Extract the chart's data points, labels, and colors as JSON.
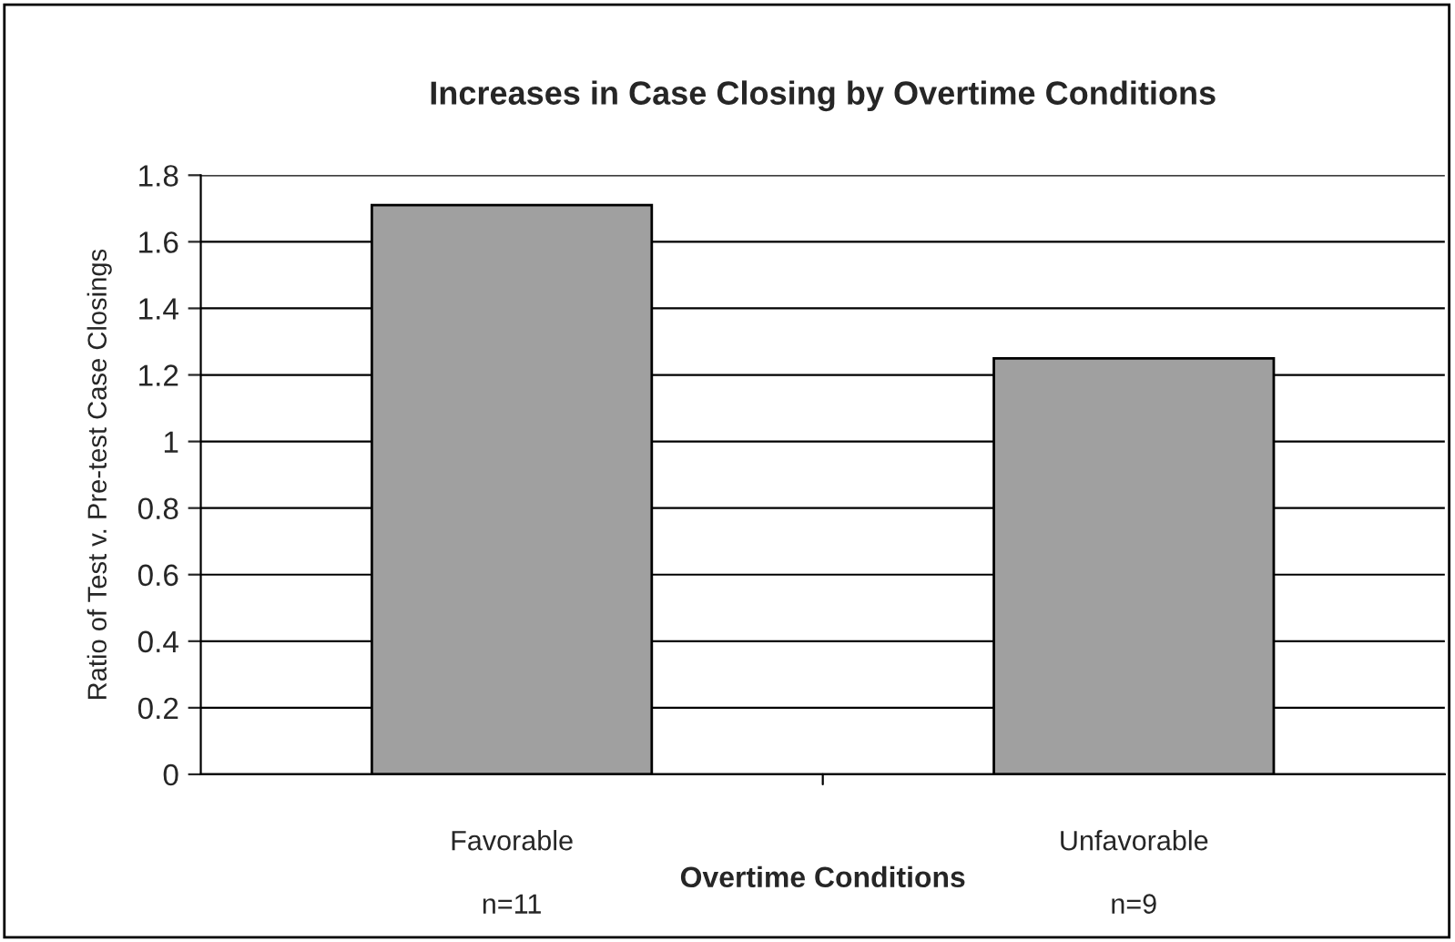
{
  "chart_data": {
    "type": "bar",
    "title": "Increases in Case Closing by Overtime Conditions",
    "xlabel": "Overtime Conditions",
    "ylabel": "Ratio of Test v. Pre-test Case Closings",
    "categories": [
      "Favorable",
      "Unfavorable"
    ],
    "values": [
      1.71,
      1.25
    ],
    "color": "#a0a0a0",
    "ylim": [
      0,
      1.8
    ],
    "yticks": [
      0,
      0.2,
      0.4,
      0.6,
      0.8,
      1,
      1.2,
      1.4,
      1.6,
      1.8
    ],
    "grid": "y",
    "legend": false,
    "annotations": [
      "n=11",
      "n=9"
    ]
  }
}
